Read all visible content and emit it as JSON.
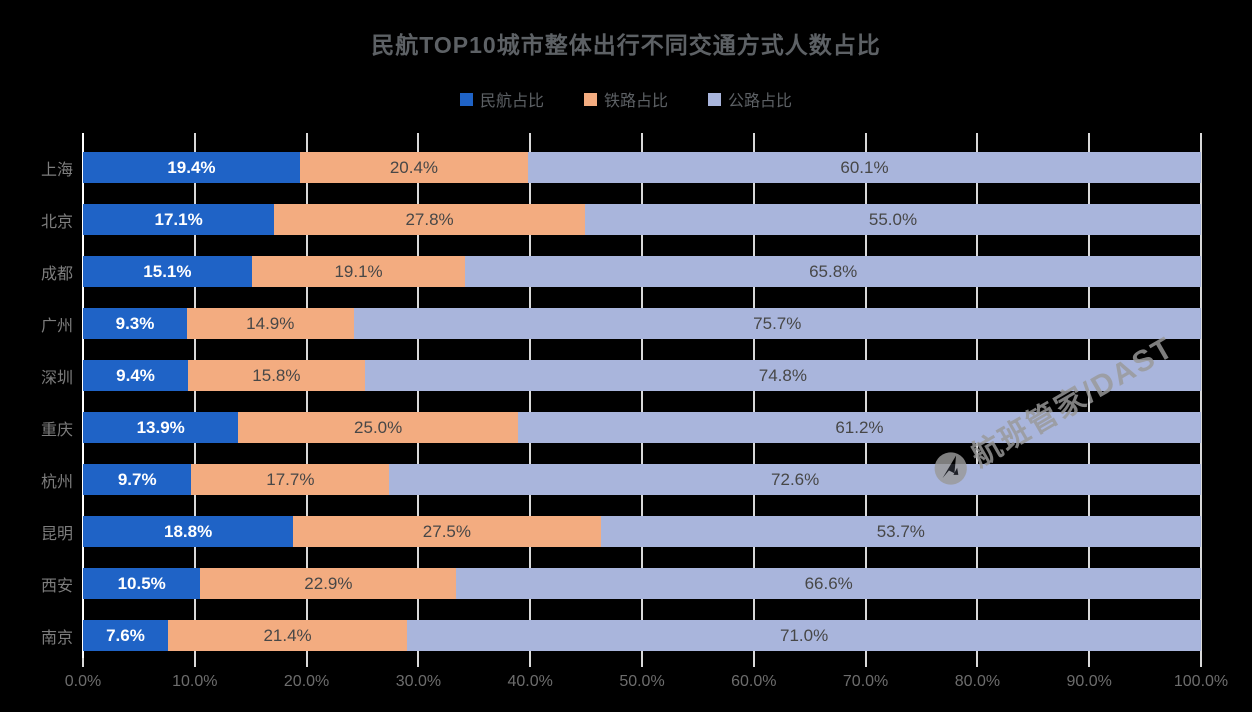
{
  "chart_data": {
    "type": "bar",
    "stacked": true,
    "orientation": "horizontal",
    "title": "民航TOP10城市整体出行不同交通方式人数占比",
    "categories": [
      "上海",
      "北京",
      "成都",
      "广州",
      "深圳",
      "重庆",
      "杭州",
      "昆明",
      "西安",
      "南京"
    ],
    "series": [
      {
        "name": "民航占比",
        "color": "#1f63c6",
        "values": [
          19.4,
          17.1,
          15.1,
          9.3,
          9.4,
          13.9,
          9.7,
          18.8,
          10.5,
          7.6
        ],
        "labels": [
          "19.4%",
          "17.1%",
          "15.1%",
          "9.3%",
          "9.4%",
          "13.9%",
          "9.7%",
          "18.8%",
          "10.5%",
          "7.6%"
        ]
      },
      {
        "name": "铁路占比",
        "color": "#f3ac80",
        "values": [
          20.4,
          27.8,
          19.1,
          14.9,
          15.8,
          25.0,
          17.7,
          27.5,
          22.9,
          21.4
        ],
        "labels": [
          "20.4%",
          "27.8%",
          "19.1%",
          "14.9%",
          "15.8%",
          "25.0%",
          "17.7%",
          "27.5%",
          "22.9%",
          "21.4%"
        ]
      },
      {
        "name": "公路占比",
        "color": "#a9b5dc",
        "values": [
          60.1,
          55.0,
          65.8,
          75.7,
          74.8,
          61.2,
          72.6,
          53.7,
          66.6,
          71.0
        ],
        "labels": [
          "60.1%",
          "55.0%",
          "65.8%",
          "75.7%",
          "74.8%",
          "61.2%",
          "72.6%",
          "53.7%",
          "66.6%",
          "71.0%"
        ]
      }
    ],
    "xlabel": "",
    "ylabel": "",
    "xlim": [
      0,
      100
    ],
    "x_ticks": [
      "0.0%",
      "10.0%",
      "20.0%",
      "30.0%",
      "40.0%",
      "50.0%",
      "60.0%",
      "70.0%",
      "80.0%",
      "90.0%",
      "100.0%"
    ],
    "grid": true,
    "legend_position": "top"
  },
  "watermark": {
    "text": "航班管家/DAST"
  },
  "colors": {
    "background": "#000000",
    "title_text": "#5d6165",
    "category_text": "#7d7d7d",
    "axis_tick_text": "#6d6d6d",
    "grid_line": "#d9d9d9",
    "axis_line": "#ffffff",
    "value_label_on_blue": "#ffffff",
    "value_label_on_light": "#474747",
    "watermark": "#9a9a9a"
  }
}
